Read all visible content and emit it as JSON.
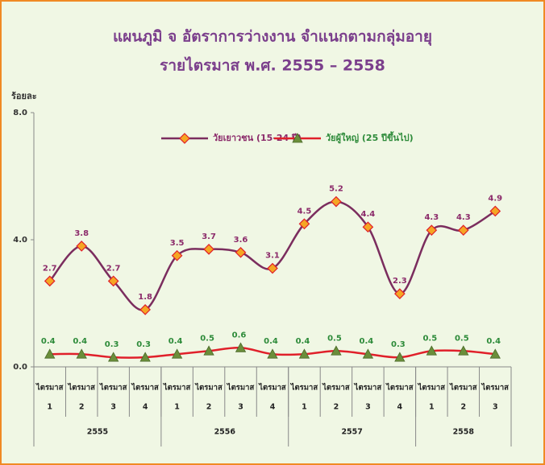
{
  "chart_data": {
    "type": "line",
    "title": "แผนภูมิ จ   อัตราการว่างงาน  จำแนกตามกลุ่มอายุ",
    "subtitle": "รายไตรมาส พ.ศ. 2555 – 2558",
    "y_label": "ร้อยละ",
    "categories": [
      "ไตรมาส",
      "ไตรมาส",
      "ไตรมาส",
      "ไตรมาส",
      "ไตรมาส",
      "ไตรมาส",
      "ไตรมาส",
      "ไตรมาส",
      "ไตรมาส",
      "ไตรมาส",
      "ไตรมาส",
      "ไตรมาส",
      "ไตรมาส",
      "ไตรมาส",
      "ไตรมาส"
    ],
    "year_groups": [
      {
        "label": "2555",
        "quarters": [
          1,
          2,
          3,
          4
        ]
      },
      {
        "label": "2556",
        "quarters": [
          1,
          2,
          3,
          4
        ]
      },
      {
        "label": "2557",
        "quarters": [
          1,
          2,
          3,
          4
        ]
      },
      {
        "label": "2558",
        "quarters": [
          1,
          2,
          3
        ]
      }
    ],
    "series": [
      {
        "name": "วัยเยาวชน (15-24 ปี)",
        "color": "#7b2d5e",
        "marker_color": "#f5a623",
        "label_color": "#8b2a6a",
        "values": [
          2.7,
          3.8,
          2.7,
          1.8,
          3.5,
          3.7,
          3.6,
          3.1,
          4.5,
          5.2,
          4.4,
          2.3,
          4.3,
          4.3,
          4.9
        ]
      },
      {
        "name": "วัยผู้ใหญ่ (25 ปีขึ้นไป)",
        "color": "#e0202a",
        "marker_color": "#6b8e3a",
        "label_color": "#2e8b3a",
        "values": [
          0.4,
          0.4,
          0.3,
          0.3,
          0.4,
          0.5,
          0.6,
          0.4,
          0.4,
          0.5,
          0.4,
          0.3,
          0.5,
          0.5,
          0.4
        ]
      }
    ],
    "ylim": [
      0,
      8
    ],
    "yticks": [
      {
        "value": 0,
        "label": "0.0"
      },
      {
        "value": 4,
        "label": "4.0"
      },
      {
        "value": 8,
        "label": "8.0"
      }
    ],
    "grid": false,
    "legend": "top"
  }
}
